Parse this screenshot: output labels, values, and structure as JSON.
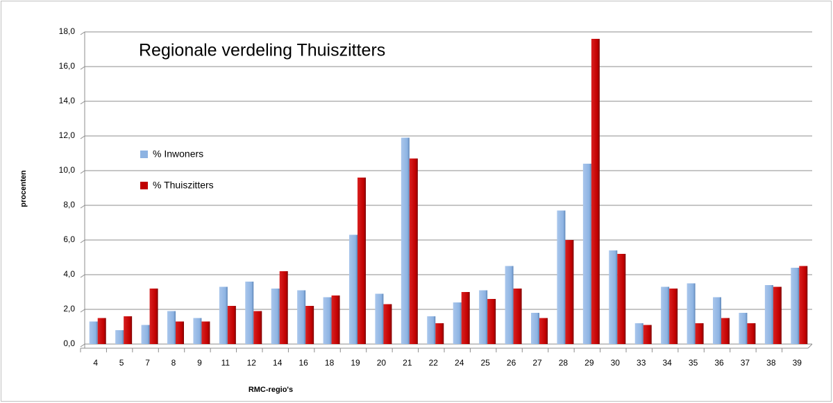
{
  "chart_data": {
    "type": "bar",
    "title": "Regionale  verdeling  Thuiszitters",
    "x_label": "RMC-regio's",
    "y_label": "procenten",
    "categories": [
      "4",
      "5",
      "7",
      "8",
      "9",
      "11",
      "12",
      "14",
      "16",
      "18",
      "19",
      "20",
      "21",
      "22",
      "24",
      "25",
      "26",
      "27",
      "28",
      "29",
      "30",
      "33",
      "34",
      "35",
      "36",
      "37",
      "38",
      "39"
    ],
    "series": [
      {
        "name": "%  Inwoners",
        "color": "#8db3e2",
        "values": [
          1.3,
          0.8,
          1.1,
          1.9,
          1.5,
          3.3,
          3.6,
          3.2,
          3.1,
          2.7,
          6.3,
          2.9,
          11.9,
          1.6,
          2.4,
          3.1,
          4.5,
          1.8,
          7.7,
          10.4,
          5.4,
          1.2,
          3.3,
          3.5,
          2.7,
          1.8,
          3.4,
          4.4
        ]
      },
      {
        "name": "%  Thuiszitters",
        "color": "#c00000",
        "values": [
          1.5,
          1.6,
          3.2,
          1.3,
          1.3,
          2.2,
          1.9,
          4.2,
          2.2,
          2.8,
          9.6,
          2.3,
          10.7,
          1.2,
          3.0,
          2.6,
          3.2,
          1.5,
          6.0,
          17.6,
          5.2,
          1.1,
          3.2,
          1.2,
          1.5,
          1.2,
          3.3,
          4.5
        ]
      }
    ],
    "ylim": [
      0,
      18
    ],
    "yticks": [
      {
        "value": 0,
        "label": "0,0"
      },
      {
        "value": 2,
        "label": "2,0"
      },
      {
        "value": 4,
        "label": "4,0"
      },
      {
        "value": 6,
        "label": "6,0"
      },
      {
        "value": 8,
        "label": "8,0"
      },
      {
        "value": 10,
        "label": "10,0"
      },
      {
        "value": 12,
        "label": "12,0"
      },
      {
        "value": 14,
        "label": "14,0"
      },
      {
        "value": 16,
        "label": "16,0"
      },
      {
        "value": 18,
        "label": "18,0"
      }
    ],
    "grid": true
  }
}
